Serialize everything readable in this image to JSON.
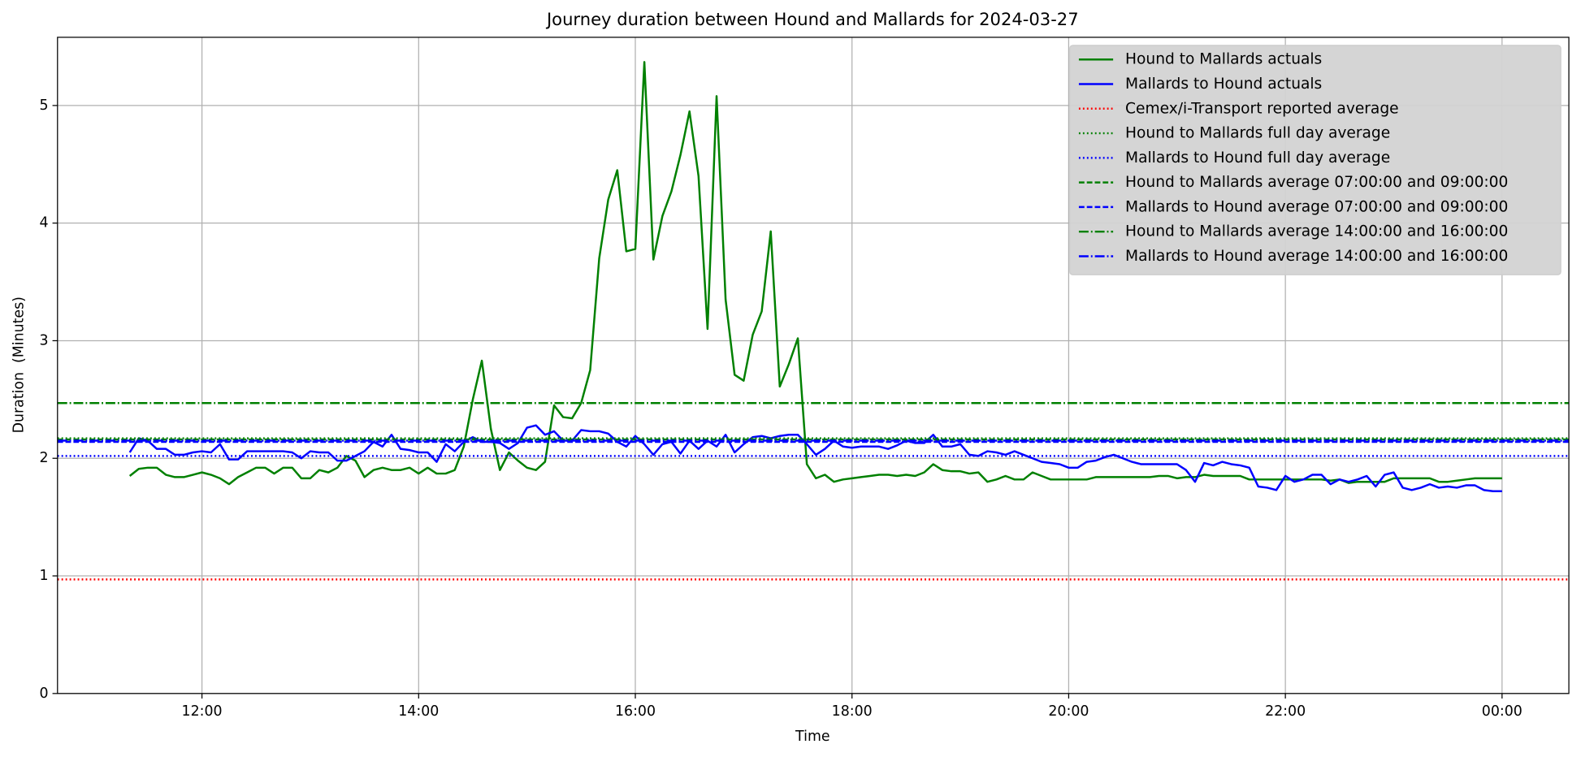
{
  "chart_data": {
    "type": "line",
    "title": "Journey duration between Hound and Mallards for 2024-03-27",
    "xlabel": "Time",
    "ylabel": "Duration  (Minutes)",
    "xlim": [
      "10:40",
      "00:37"
    ],
    "ylim": [
      0,
      5.58
    ],
    "xticks": [
      "12:00",
      "14:00",
      "16:00",
      "18:00",
      "20:00",
      "22:00",
      "00:00"
    ],
    "yticks": [
      0,
      1,
      2,
      3,
      4,
      5
    ],
    "grid": true,
    "legend": "upper right",
    "x": [
      "11:20",
      "11:25",
      "11:30",
      "11:35",
      "11:40",
      "11:45",
      "11:50",
      "11:55",
      "12:00",
      "12:05",
      "12:10",
      "12:15",
      "12:20",
      "12:25",
      "12:30",
      "12:35",
      "12:40",
      "12:45",
      "12:50",
      "12:55",
      "13:00",
      "13:05",
      "13:10",
      "13:15",
      "13:20",
      "13:25",
      "13:30",
      "13:35",
      "13:40",
      "13:45",
      "13:50",
      "13:55",
      "14:00",
      "14:05",
      "14:10",
      "14:15",
      "14:20",
      "14:25",
      "14:30",
      "14:35",
      "14:40",
      "14:45",
      "14:50",
      "14:55",
      "15:00",
      "15:05",
      "15:10",
      "15:15",
      "15:20",
      "15:25",
      "15:30",
      "15:35",
      "15:40",
      "15:45",
      "15:50",
      "15:55",
      "16:00",
      "16:05",
      "16:10",
      "16:15",
      "16:20",
      "16:25",
      "16:30",
      "16:35",
      "16:40",
      "16:45",
      "16:50",
      "16:55",
      "17:00",
      "17:05",
      "17:10",
      "17:15",
      "17:20",
      "17:25",
      "17:30",
      "17:35",
      "17:40",
      "17:45",
      "17:50",
      "17:55",
      "18:00",
      "18:05",
      "18:10",
      "18:15",
      "18:20",
      "18:25",
      "18:30",
      "18:35",
      "18:40",
      "18:45",
      "18:50",
      "18:55",
      "19:00",
      "19:05",
      "19:10",
      "19:15",
      "19:20",
      "19:25",
      "19:30",
      "19:35",
      "19:40",
      "19:45",
      "19:50",
      "19:55",
      "20:00",
      "20:05",
      "20:10",
      "20:15",
      "20:20",
      "20:25",
      "20:30",
      "20:35",
      "20:40",
      "20:45",
      "20:50",
      "20:55",
      "21:00",
      "21:05",
      "21:10",
      "21:15",
      "21:20",
      "21:25",
      "21:30",
      "21:35",
      "21:40",
      "21:45",
      "21:50",
      "21:55",
      "22:00",
      "22:05",
      "22:10",
      "22:15",
      "22:20",
      "22:25",
      "22:30",
      "22:35",
      "22:40",
      "22:45",
      "22:50",
      "22:55",
      "23:00",
      "23:05",
      "23:10",
      "23:15",
      "23:20",
      "23:25",
      "23:30",
      "23:35",
      "23:40",
      "23:45",
      "23:50",
      "23:55",
      "00:00"
    ],
    "series": [
      {
        "name": "Hound to Mallards actuals",
        "color": "#008000",
        "style": "solid",
        "values": [
          1.85,
          1.91,
          1.92,
          1.92,
          1.86,
          1.84,
          1.84,
          1.86,
          1.88,
          1.86,
          1.83,
          1.78,
          1.84,
          1.88,
          1.92,
          1.92,
          1.87,
          1.92,
          1.92,
          1.83,
          1.83,
          1.9,
          1.88,
          1.92,
          2.02,
          1.98,
          1.84,
          1.9,
          1.92,
          1.9,
          1.9,
          1.92,
          1.87,
          1.92,
          1.87,
          1.87,
          1.9,
          2.1,
          2.5,
          2.83,
          2.25,
          1.9,
          2.05,
          1.98,
          1.92,
          1.9,
          1.97,
          2.45,
          2.35,
          2.34,
          2.47,
          2.75,
          3.7,
          4.2,
          4.45,
          3.76,
          3.78,
          5.37,
          3.69,
          4.06,
          4.27,
          4.58,
          4.95,
          4.4,
          3.1,
          5.08,
          3.35,
          2.71,
          2.66,
          3.05,
          3.25,
          3.93,
          2.61,
          2.8,
          3.02,
          1.95,
          1.83,
          1.86,
          1.8,
          1.82,
          1.83,
          1.84,
          1.85,
          1.86,
          1.86,
          1.85,
          1.86,
          1.85,
          1.88,
          1.95,
          1.9,
          1.89,
          1.89,
          1.87,
          1.88,
          1.8,
          1.82,
          1.85,
          1.82,
          1.82,
          1.88,
          1.85,
          1.82,
          1.82,
          1.82,
          1.82,
          1.82,
          1.84,
          1.84,
          1.84,
          1.84,
          1.84,
          1.84,
          1.84,
          1.85,
          1.85,
          1.83,
          1.84,
          1.84,
          1.86,
          1.85,
          1.85,
          1.85,
          1.85,
          1.82,
          1.82,
          1.82,
          1.82,
          1.82,
          1.82,
          1.82,
          1.82,
          1.82,
          1.81,
          1.82,
          1.79,
          1.8,
          1.8,
          1.8,
          1.8,
          1.83,
          1.83,
          1.83,
          1.83,
          1.83,
          1.8,
          1.8,
          1.81,
          1.82,
          1.83,
          1.83,
          1.83,
          1.83
        ]
      },
      {
        "name": "Mallards to Hound actuals",
        "color": "#0000ff",
        "style": "solid",
        "values": [
          2.05,
          2.17,
          2.15,
          2.08,
          2.08,
          2.03,
          2.03,
          2.05,
          2.06,
          2.05,
          2.12,
          1.99,
          1.99,
          2.06,
          2.06,
          2.06,
          2.06,
          2.06,
          2.05,
          2.0,
          2.06,
          2.05,
          2.05,
          1.98,
          1.98,
          2.02,
          2.06,
          2.14,
          2.1,
          2.2,
          2.08,
          2.07,
          2.05,
          2.05,
          1.97,
          2.12,
          2.06,
          2.14,
          2.18,
          2.14,
          2.14,
          2.13,
          2.08,
          2.13,
          2.26,
          2.28,
          2.2,
          2.23,
          2.15,
          2.15,
          2.24,
          2.23,
          2.23,
          2.21,
          2.14,
          2.1,
          2.19,
          2.12,
          2.03,
          2.12,
          2.14,
          2.04,
          2.15,
          2.08,
          2.15,
          2.1,
          2.2,
          2.05,
          2.12,
          2.18,
          2.19,
          2.17,
          2.19,
          2.2,
          2.2,
          2.12,
          2.03,
          2.08,
          2.15,
          2.1,
          2.09,
          2.1,
          2.1,
          2.1,
          2.08,
          2.11,
          2.15,
          2.13,
          2.13,
          2.2,
          2.1,
          2.1,
          2.12,
          2.03,
          2.02,
          2.06,
          2.05,
          2.03,
          2.06,
          2.03,
          2.0,
          1.97,
          1.96,
          1.95,
          1.92,
          1.92,
          1.97,
          1.98,
          2.01,
          2.03,
          2.0,
          1.97,
          1.95,
          1.95,
          1.95,
          1.95,
          1.95,
          1.9,
          1.8,
          1.96,
          1.94,
          1.97,
          1.95,
          1.94,
          1.92,
          1.76,
          1.75,
          1.73,
          1.85,
          1.8,
          1.82,
          1.86,
          1.86,
          1.78,
          1.82,
          1.8,
          1.82,
          1.85,
          1.76,
          1.86,
          1.88,
          1.75,
          1.73,
          1.75,
          1.78,
          1.75,
          1.76,
          1.75,
          1.77,
          1.77,
          1.73,
          1.72,
          1.72
        ]
      },
      {
        "name": "Cemex/i-Transport reported average",
        "color": "#ff0000",
        "style": "dotted",
        "value": 0.97
      },
      {
        "name": "Hound to Mallards full day average",
        "color": "#008000",
        "style": "dotted",
        "value": 2.17
      },
      {
        "name": "Mallards to Hound full day average",
        "color": "#0000ff",
        "style": "dotted",
        "value": 2.02
      },
      {
        "name": "Hound to Mallards average 07:00:00 and 09:00:00",
        "color": "#008000",
        "style": "dashed",
        "value": 2.16
      },
      {
        "name": "Mallards to Hound average 07:00:00 and 09:00:00",
        "color": "#0000ff",
        "style": "dashed",
        "value": 2.14
      },
      {
        "name": "Hound to Mallards average 14:00:00 and 16:00:00",
        "color": "#008000",
        "style": "dashdot",
        "value": 2.47
      },
      {
        "name": "Mallards to Hound average 14:00:00 and 16:00:00",
        "color": "#0000ff",
        "style": "dashdot",
        "value": 2.15
      }
    ]
  }
}
